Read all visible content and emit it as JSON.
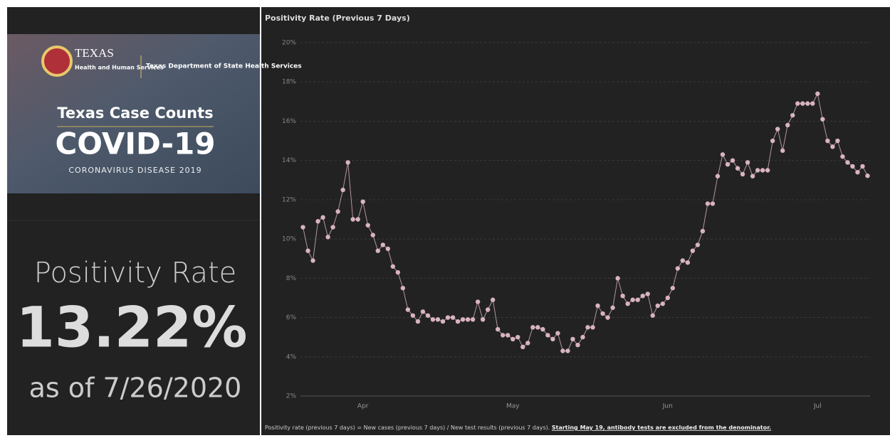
{
  "panel": {
    "logo_agency": "TEXAS",
    "logo_agency_sub": "Health and Human Services",
    "logo_dept": "Texas Department of State Health Services",
    "banner_title": "Texas Case Counts",
    "banner_covid": "COVID-19",
    "banner_sub": "CORONAVIRUS DISEASE 2019",
    "metric_label": "Positivity Rate",
    "metric_value": "13.22%",
    "metric_date": "as of 7/26/2020"
  },
  "chart_data": {
    "type": "line",
    "title": "Positivity Rate (Previous 7 Days)",
    "footnote": "Positivity rate (previous 7 days) = New cases (previous 7 days) / New test results (previous 7 days).",
    "footnote_emphasis": "Starting May 19, antibody tests are excluded from the denominator.",
    "color": "#d9b3c2",
    "grid": true,
    "ylim": [
      2,
      20
    ],
    "yticks": [
      {
        "value": 2,
        "label": "2%"
      },
      {
        "value": 4,
        "label": "4%"
      },
      {
        "value": 6,
        "label": "6%"
      },
      {
        "value": 8,
        "label": "8%"
      },
      {
        "value": 10,
        "label": "10%"
      },
      {
        "value": 12,
        "label": "12%"
      },
      {
        "value": 14,
        "label": "14%"
      },
      {
        "value": 16,
        "label": "16%"
      },
      {
        "value": 18,
        "label": "18%"
      },
      {
        "value": 20,
        "label": "20%"
      }
    ],
    "categories": [
      null,
      null,
      null,
      null,
      null,
      null,
      null,
      null,
      null,
      null,
      null,
      null,
      "Apr",
      null,
      null,
      null,
      null,
      null,
      null,
      null,
      null,
      null,
      null,
      null,
      null,
      null,
      null,
      null,
      null,
      null,
      null,
      null,
      null,
      null,
      null,
      null,
      null,
      null,
      null,
      null,
      null,
      null,
      "May",
      null,
      null,
      null,
      null,
      null,
      null,
      null,
      null,
      null,
      null,
      null,
      null,
      null,
      null,
      null,
      null,
      null,
      null,
      null,
      null,
      null,
      null,
      null,
      null,
      null,
      null,
      null,
      null,
      null,
      null,
      "Jun",
      null,
      null,
      null,
      null,
      null,
      null,
      null,
      null,
      null,
      null,
      null,
      null,
      null,
      null,
      null,
      null,
      null,
      null,
      null,
      null,
      null,
      null,
      null,
      null,
      null,
      null,
      null,
      null,
      null,
      "Jul",
      null,
      null,
      null,
      null,
      null,
      null,
      null,
      null,
      null,
      null
    ],
    "values": [
      10.6,
      9.4,
      8.9,
      10.9,
      11.1,
      10.1,
      10.6,
      11.4,
      12.5,
      13.9,
      11.0,
      11.0,
      11.9,
      10.7,
      10.2,
      9.4,
      9.7,
      9.5,
      8.6,
      8.3,
      7.5,
      6.4,
      6.1,
      5.8,
      6.3,
      6.1,
      5.9,
      5.9,
      5.8,
      6.0,
      6.0,
      5.8,
      5.9,
      5.9,
      5.9,
      6.8,
      5.9,
      6.4,
      6.9,
      5.4,
      5.1,
      5.1,
      4.9,
      5.0,
      4.5,
      4.7,
      5.5,
      5.5,
      5.4,
      5.1,
      4.9,
      5.2,
      4.3,
      4.3,
      4.9,
      4.6,
      5.0,
      5.5,
      5.5,
      6.6,
      6.2,
      6.0,
      6.5,
      8.0,
      7.1,
      6.7,
      6.9,
      6.9,
      7.1,
      7.2,
      6.1,
      6.6,
      6.7,
      7.0,
      7.5,
      8.5,
      8.9,
      8.8,
      9.4,
      9.7,
      10.4,
      11.8,
      11.8,
      13.2,
      14.3,
      13.8,
      14.0,
      13.6,
      13.3,
      13.9,
      13.2,
      13.5,
      13.5,
      13.5,
      15.0,
      15.6,
      14.5,
      15.8,
      16.3,
      16.9,
      16.9,
      16.9,
      16.9,
      17.4,
      16.1,
      15.0,
      14.7,
      15.0,
      14.2,
      13.9,
      13.7,
      13.4,
      13.7,
      13.22
    ]
  }
}
